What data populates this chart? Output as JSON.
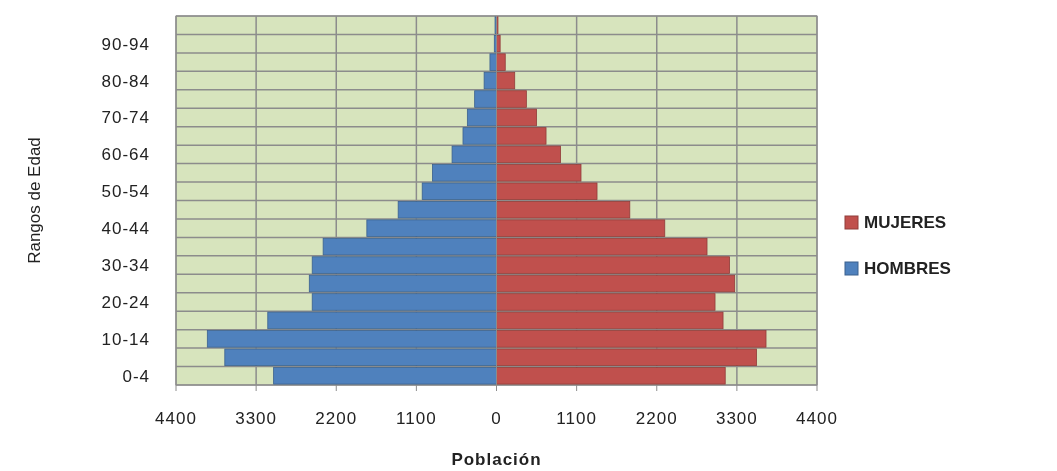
{
  "chart_data": {
    "type": "bar",
    "orientation": "horizontal",
    "stacked": true,
    "xlabel": "Población",
    "ylabel": "Rangos de Edad",
    "categories": [
      null,
      "90-94",
      null,
      "80-84",
      null,
      "70-74",
      null,
      "60-64",
      null,
      "50-54",
      null,
      "40-44",
      null,
      "30-34",
      null,
      "20-24",
      null,
      "10-14",
      null,
      "0-4"
    ],
    "series": [
      {
        "name": "MUJERES",
        "color": "#c0504d",
        "values": [
          20,
          50,
          120,
          250,
          410,
          550,
          680,
          880,
          1160,
          1380,
          1830,
          2310,
          2890,
          3200,
          3270,
          3000,
          3110,
          3700,
          3570,
          3140
        ]
      },
      {
        "name": "HOMBRES",
        "color": "#4f81bd",
        "values": [
          -20,
          -30,
          -90,
          -170,
          -300,
          -400,
          -460,
          -610,
          -880,
          -1020,
          -1350,
          -1780,
          -2380,
          -2530,
          -2570,
          -2530,
          -3140,
          -3970,
          -3730,
          -3060
        ]
      }
    ],
    "xlim": [
      -4400,
      4400
    ],
    "xticks": [
      {
        "value": -4400,
        "label": "4400"
      },
      {
        "value": -3300,
        "label": "3300"
      },
      {
        "value": -2200,
        "label": "2200"
      },
      {
        "value": -1100,
        "label": "1100"
      },
      0,
      1100,
      2200,
      3300,
      4400
    ],
    "grid": true,
    "legend": "right"
  }
}
